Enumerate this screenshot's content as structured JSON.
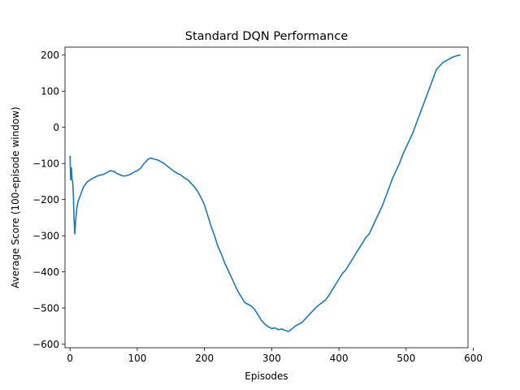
{
  "chart_data": {
    "type": "line",
    "title": "Standard DQN Performance",
    "xlabel": "Episodes",
    "ylabel": "Average Score (100-episode window)",
    "xlim": [
      -7.5,
      592
    ],
    "ylim": [
      -610,
      222
    ],
    "xticks": [
      0,
      100,
      200,
      300,
      400,
      500,
      600
    ],
    "yticks": [
      -600,
      -500,
      -400,
      -300,
      -200,
      -100,
      0,
      100,
      200
    ],
    "xtick_labels": [
      "0",
      "100",
      "200",
      "300",
      "400",
      "500",
      "600"
    ],
    "ytick_labels": [
      "−600",
      "−500",
      "−400",
      "−300",
      "−200",
      "−100",
      "0",
      "100",
      "200"
    ],
    "grid": false,
    "line_color": "#1f77b4",
    "series": [
      {
        "x": [
          0,
          1,
          2,
          3,
          4,
          5,
          6,
          7,
          8,
          9,
          10,
          12,
          14,
          17,
          20,
          25,
          30,
          35,
          40,
          45,
          50,
          55,
          60,
          65,
          70,
          75,
          80,
          85,
          90,
          95,
          100,
          105,
          110,
          113,
          116,
          120,
          125,
          130,
          135,
          140,
          145,
          150,
          155,
          160,
          165,
          170,
          175,
          180,
          185,
          190,
          195,
          200,
          205,
          210,
          215,
          220,
          225,
          230,
          235,
          240,
          245,
          250,
          255,
          260,
          265,
          270,
          275,
          280,
          285,
          290,
          295,
          300,
          305,
          310,
          315,
          320,
          325,
          330,
          335,
          340,
          345,
          350,
          355,
          360,
          365,
          370,
          375,
          380,
          385,
          390,
          395,
          400,
          405,
          410,
          415,
          420,
          425,
          430,
          435,
          440,
          445,
          450,
          455,
          460,
          465,
          470,
          475,
          480,
          485,
          490,
          495,
          500,
          505,
          510,
          515,
          520,
          525,
          530,
          535,
          540,
          545,
          550,
          555,
          560,
          565,
          570,
          575,
          580
        ],
        "y": [
          -80,
          -145,
          -112,
          -145,
          -150,
          -190,
          -255,
          -295,
          -270,
          -245,
          -225,
          -205,
          -195,
          -180,
          -165,
          -152,
          -145,
          -140,
          -135,
          -132,
          -130,
          -125,
          -120,
          -122,
          -128,
          -132,
          -135,
          -133,
          -130,
          -124,
          -120,
          -113,
          -100,
          -95,
          -88,
          -85,
          -88,
          -90,
          -95,
          -100,
          -108,
          -115,
          -122,
          -128,
          -132,
          -140,
          -145,
          -155,
          -165,
          -178,
          -195,
          -215,
          -245,
          -275,
          -300,
          -330,
          -350,
          -375,
          -395,
          -415,
          -435,
          -455,
          -470,
          -485,
          -490,
          -495,
          -505,
          -520,
          -535,
          -545,
          -552,
          -557,
          -555,
          -560,
          -558,
          -562,
          -565,
          -558,
          -550,
          -545,
          -540,
          -530,
          -520,
          -510,
          -500,
          -492,
          -485,
          -478,
          -465,
          -450,
          -435,
          -420,
          -405,
          -395,
          -380,
          -365,
          -350,
          -335,
          -320,
          -305,
          -295,
          -275,
          -255,
          -235,
          -215,
          -190,
          -165,
          -140,
          -120,
          -100,
          -75,
          -55,
          -35,
          -15,
          10,
          35,
          60,
          85,
          110,
          135,
          160,
          170,
          180,
          185,
          190,
          195,
          198,
          200
        ]
      }
    ]
  }
}
